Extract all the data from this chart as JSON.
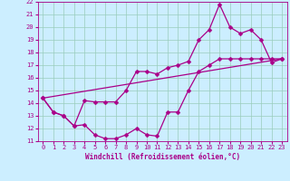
{
  "xlabel": "Windchill (Refroidissement éolien,°C)",
  "background_color": "#cceeff",
  "grid_color": "#99ccbb",
  "line_color": "#aa0088",
  "xlim": [
    -0.5,
    23.5
  ],
  "ylim": [
    11,
    22
  ],
  "xticks": [
    0,
    1,
    2,
    3,
    4,
    5,
    6,
    7,
    8,
    9,
    10,
    11,
    12,
    13,
    14,
    15,
    16,
    17,
    18,
    19,
    20,
    21,
    22,
    23
  ],
  "yticks": [
    11,
    12,
    13,
    14,
    15,
    16,
    17,
    18,
    19,
    20,
    21,
    22
  ],
  "curve1_x": [
    0,
    1,
    2,
    3,
    4,
    5,
    6,
    7,
    8,
    9,
    10,
    11,
    12,
    13,
    14,
    15,
    16,
    17,
    18,
    19,
    20,
    21,
    22,
    23
  ],
  "curve1_y": [
    14.4,
    13.3,
    13.0,
    12.2,
    12.3,
    11.5,
    11.2,
    11.2,
    11.5,
    12.0,
    11.5,
    11.4,
    13.3,
    13.3,
    15.0,
    16.5,
    17.0,
    17.5,
    17.5,
    17.5,
    17.5,
    17.5,
    17.5,
    17.5
  ],
  "curve2_x": [
    0,
    1,
    2,
    3,
    4,
    5,
    6,
    7,
    8,
    9,
    10,
    11,
    12,
    13,
    14,
    15,
    16,
    17,
    18,
    19,
    20,
    21,
    22,
    23
  ],
  "curve2_y": [
    14.4,
    13.3,
    13.0,
    12.2,
    14.2,
    14.1,
    14.1,
    14.1,
    15.0,
    16.5,
    16.5,
    16.3,
    16.8,
    17.0,
    17.3,
    19.0,
    19.8,
    21.8,
    20.0,
    19.5,
    19.8,
    19.0,
    17.2,
    17.5
  ],
  "curve3_x": [
    0,
    23
  ],
  "curve3_y": [
    14.4,
    17.5
  ],
  "markersize": 2.5,
  "linewidth": 0.9,
  "tick_fontsize": 5,
  "label_fontsize": 5.5
}
